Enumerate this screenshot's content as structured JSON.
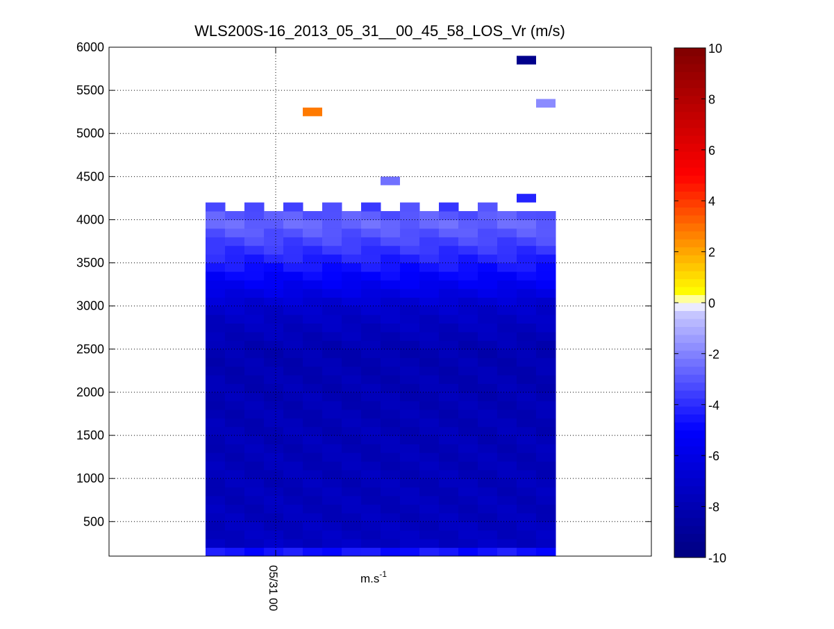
{
  "chart_data": {
    "type": "heatmap",
    "title": "WLS200S-16_2013_05_31__00_45_58_LOS_Vr (m/s)",
    "xlabel": "m.s",
    "xlabel_superscript": "-1",
    "ylabel": "",
    "y_ticks": [
      500,
      1000,
      1500,
      2000,
      2500,
      3000,
      3500,
      4000,
      4500,
      5000,
      5500,
      6000
    ],
    "y_tick_labels": [
      "500",
      "1000",
      "1500",
      "2000",
      "2500",
      "3000",
      "3500",
      "4000",
      "4500",
      "5000",
      "5500",
      "6000"
    ],
    "ylim": [
      100,
      6000
    ],
    "x_tick_label": "05/31 00",
    "grid": true,
    "colorbar": {
      "ticks": [
        -10,
        -8,
        -6,
        -4,
        -2,
        0,
        2,
        4,
        6,
        8,
        10
      ],
      "tick_labels": [
        "-10",
        "-8",
        "-6",
        "-4",
        "-2",
        "0",
        "2",
        "4",
        "6",
        "8",
        "10"
      ],
      "clim": [
        -10,
        10
      ],
      "colors": {
        "low": "#00007f",
        "mid_neg": "#0000ff",
        "near_zero": "#ffffff",
        "yellow": "#ffff00",
        "mid_pos": "#ff0000",
        "high": "#7f0000"
      }
    },
    "columns": 18,
    "bin_height_m": 100,
    "altitude_range_m": [
      100,
      4200
    ],
    "profile": [
      {
        "altitude": 150,
        "vr": -4.6
      },
      {
        "altitude": 200,
        "vr": -7.3
      },
      {
        "altitude": 500,
        "vr": -7.6
      },
      {
        "altitude": 1000,
        "vr": -7.7
      },
      {
        "altitude": 1500,
        "vr": -7.8
      },
      {
        "altitude": 2000,
        "vr": -7.9
      },
      {
        "altitude": 2500,
        "vr": -8.0
      },
      {
        "altitude": 3000,
        "vr": -7.0
      },
      {
        "altitude": 3200,
        "vr": -5.8
      },
      {
        "altitude": 3400,
        "vr": -4.8
      },
      {
        "altitude": 3600,
        "vr": -4.0
      },
      {
        "altitude": 3800,
        "vr": -3.2
      },
      {
        "altitude": 4000,
        "vr": -2.5
      },
      {
        "altitude": 4100,
        "vr": -3.4
      }
    ],
    "outliers": [
      {
        "col": 5,
        "altitude": 5250,
        "vr": 2.8
      },
      {
        "col": 9,
        "altitude": 4450,
        "vr": -2.4
      },
      {
        "col": 16,
        "altitude": 5850,
        "vr": -9.5
      },
      {
        "col": 16,
        "altitude": 4250,
        "vr": -4.2
      },
      {
        "col": 17,
        "altitude": 5350,
        "vr": -1.8
      }
    ]
  }
}
